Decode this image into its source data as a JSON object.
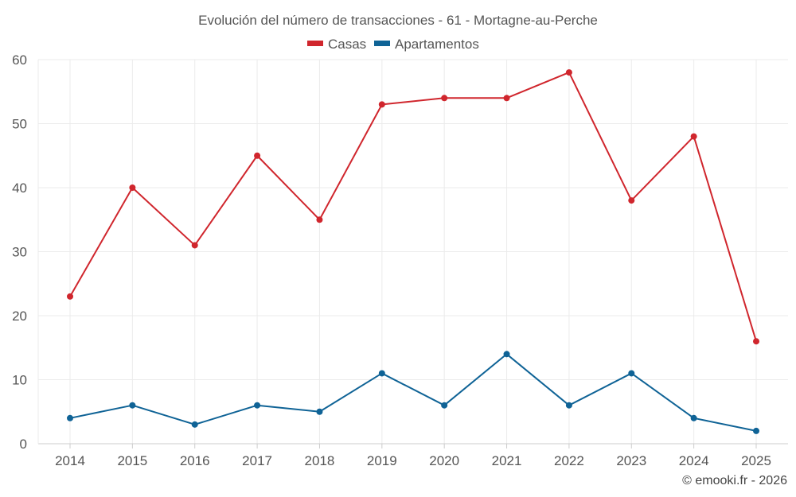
{
  "chart_data": {
    "type": "line",
    "title": "Evolución del número de transacciones - 61 - Mortagne-au-Perche",
    "categories": [
      "2014",
      "2015",
      "2016",
      "2017",
      "2018",
      "2019",
      "2020",
      "2021",
      "2022",
      "2023",
      "2024",
      "2025"
    ],
    "ylim": [
      0,
      60
    ],
    "yticks": [
      0,
      10,
      20,
      30,
      40,
      50,
      60
    ],
    "grid": true,
    "legend": "top-center",
    "series": [
      {
        "name": "Casas",
        "color": "#d0262d",
        "values": [
          23,
          40,
          31,
          45,
          35,
          53,
          54,
          54,
          58,
          38,
          48,
          16
        ]
      },
      {
        "name": "Apartamentos",
        "color": "#0f6396",
        "values": [
          4,
          6,
          3,
          6,
          5,
          11,
          6,
          14,
          6,
          11,
          4,
          2
        ]
      }
    ]
  },
  "credit": "© emooki.fr - 2026"
}
